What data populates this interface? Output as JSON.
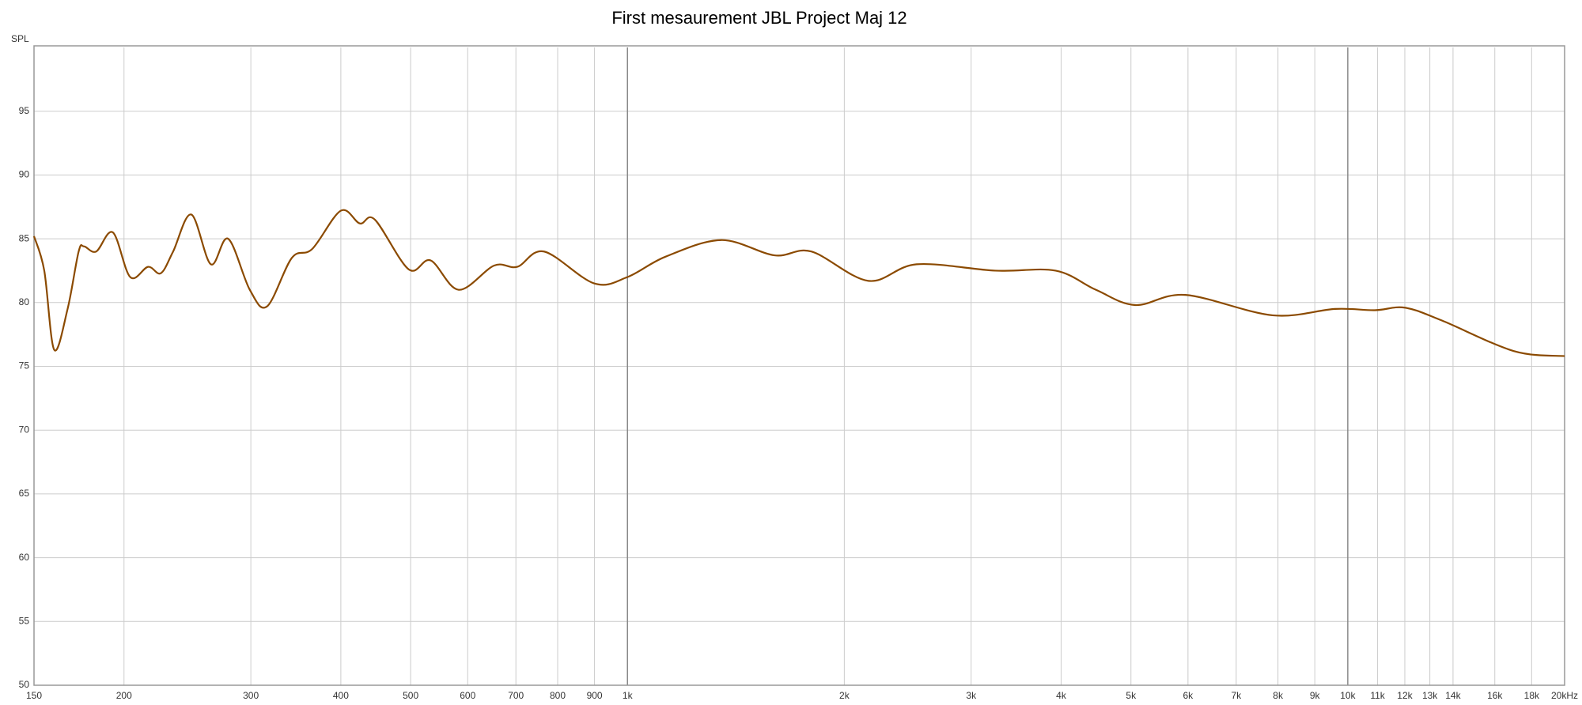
{
  "chart_data": {
    "type": "line",
    "title": "First mesaurement JBL Project Maj 12",
    "y_label": "SPL",
    "x_scale": "log",
    "grid": true,
    "xlim": [
      150,
      20000
    ],
    "ylim": [
      50,
      100
    ],
    "xticks": [
      150,
      200,
      300,
      400,
      500,
      600,
      700,
      800,
      900,
      {
        "value": 1000,
        "label": "1k"
      },
      {
        "value": 2000,
        "label": "2k"
      },
      {
        "value": 3000,
        "label": "3k"
      },
      {
        "value": 4000,
        "label": "4k"
      },
      {
        "value": 5000,
        "label": "5k"
      },
      {
        "value": 6000,
        "label": "6k"
      },
      {
        "value": 7000,
        "label": "7k"
      },
      {
        "value": 8000,
        "label": "8k"
      },
      {
        "value": 9000,
        "label": "9k"
      },
      {
        "value": 10000,
        "label": "10k"
      },
      {
        "value": 11000,
        "label": "11k"
      },
      {
        "value": 12000,
        "label": "12k"
      },
      {
        "value": 13000,
        "label": "13k"
      },
      {
        "value": 14000,
        "label": "14k"
      },
      {
        "value": 16000,
        "label": "16k"
      },
      {
        "value": 18000,
        "label": "18k"
      },
      {
        "value": 20000,
        "label": "20kHz"
      }
    ],
    "yticks": [
      50,
      55,
      60,
      65,
      70,
      75,
      80,
      85,
      90,
      95
    ],
    "x": [
      150,
      155,
      160,
      167,
      173,
      176,
      183,
      193,
      204,
      216,
      225,
      234,
      248,
      264,
      279,
      299,
      316,
      342,
      365,
      400,
      425,
      446,
      497,
      533,
      583,
      653,
      703,
      766,
      899,
      1000,
      1130,
      1350,
      1600,
      1800,
      2160,
      2520,
      3240,
      3930,
      4470,
      5070,
      5950,
      7860,
      9600,
      10900,
      12000,
      13500,
      17000,
      20000
    ],
    "series": [
      {
        "name": "SPL",
        "color": "#8b4a00",
        "values": [
          85.2,
          82.5,
          76.3,
          79.5,
          84,
          84.4,
          84,
          85.5,
          82,
          82.8,
          82.3,
          84,
          86.9,
          83,
          85,
          81,
          79.7,
          83.5,
          84.2,
          87.2,
          86.2,
          86.5,
          82.6,
          83.3,
          81,
          82.9,
          82.8,
          84,
          81.5,
          82,
          83.6,
          84.9,
          83.7,
          84,
          81.7,
          83,
          82.5,
          82.5,
          81,
          79.8,
          80.6,
          79,
          79.5,
          79.4,
          79.6,
          78.6,
          76.2,
          75.8
        ]
      }
    ]
  }
}
